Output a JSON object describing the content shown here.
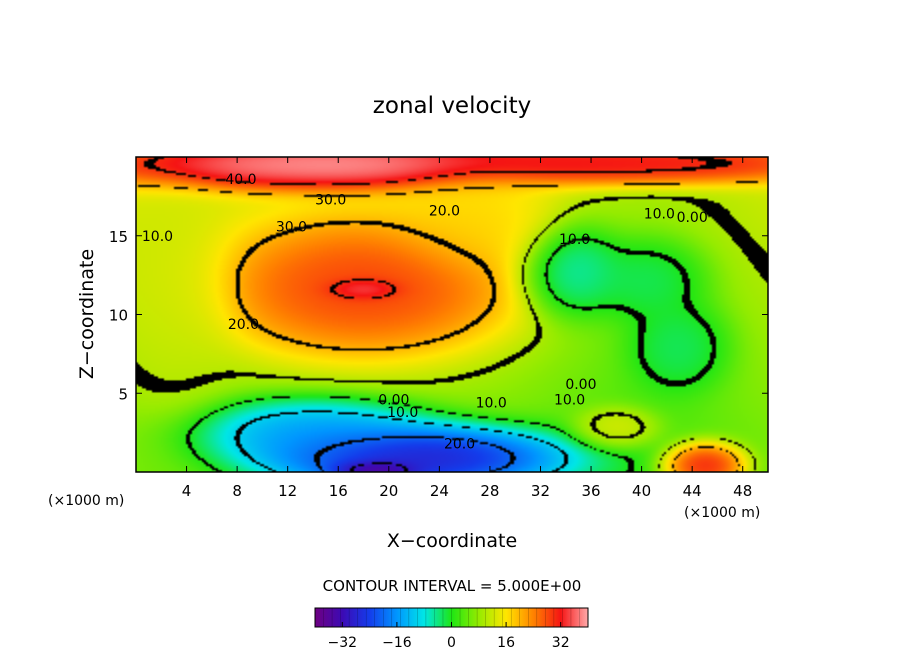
{
  "chart_data": {
    "type": "heatmap",
    "title": "zonal velocity",
    "xlabel": "X−coordinate",
    "ylabel": "Z−coordinate",
    "x_unit_left": "(×1000 m)",
    "x_unit_right": "(×1000 m)",
    "xlim": [
      0,
      50
    ],
    "ylim": [
      0,
      20
    ],
    "x_ticks": [
      "4",
      "8",
      "12",
      "16",
      "20",
      "24",
      "28",
      "32",
      "36",
      "40",
      "44",
      "48"
    ],
    "x_tick_values": [
      4,
      8,
      12,
      16,
      20,
      24,
      28,
      32,
      36,
      40,
      44,
      48
    ],
    "y_ticks": [
      "5",
      "10",
      "15"
    ],
    "y_tick_values": [
      5,
      10,
      15
    ],
    "contour_interval_text": "CONTOUR INTERVAL = 5.000E+00",
    "colorbar": {
      "range": [
        -40,
        40
      ],
      "tick_labels": [
        "−32",
        "−16",
        "0",
        "16",
        "32"
      ],
      "tick_values": [
        -32,
        -16,
        0,
        16,
        32
      ]
    },
    "contour_labels": [
      {
        "text": "40.0",
        "x": 8.3,
        "z": 18.6
      },
      {
        "text": "30.0",
        "x": 15.4,
        "z": 17.3
      },
      {
        "text": "30.0",
        "x": 12.3,
        "z": 15.6
      },
      {
        "text": "20.0",
        "x": 24.4,
        "z": 16.6
      },
      {
        "text": "20.0",
        "x": 8.5,
        "z": 9.4
      },
      {
        "text": "10.0",
        "x": 1.7,
        "z": 15.0
      },
      {
        "text": "10.0",
        "x": 34.7,
        "z": 14.8
      },
      {
        "text": "10.0",
        "x": 41.4,
        "z": 16.4
      },
      {
        "text": "0.00",
        "x": 44.0,
        "z": 16.2
      },
      {
        "text": "0.00",
        "x": 35.2,
        "z": 5.6
      },
      {
        "text": "10.0",
        "x": 34.3,
        "z": 4.6
      },
      {
        "text": "0.00",
        "x": 20.4,
        "z": 4.6
      },
      {
        "text": "10.0",
        "x": 21.1,
        "z": 3.8
      },
      {
        "text": "10.0",
        "x": 28.1,
        "z": 4.4
      },
      {
        "text": "20.0",
        "x": 25.6,
        "z": 1.8
      }
    ],
    "features": [
      {
        "x": 18.0,
        "z": 11.6,
        "value": 41,
        "rx": 2.1,
        "rz": 0.5
      },
      {
        "x": 18.0,
        "z": 11.6,
        "value": 34,
        "rx": 9.0,
        "rz": 3.3
      },
      {
        "x": 15.0,
        "z": 19.5,
        "value": 46,
        "rx": 14.0,
        "rz": 1.2
      },
      {
        "x": 40.0,
        "z": 19.6,
        "value": 38,
        "rx": 12.0,
        "rz": 1.0
      },
      {
        "x": 27.0,
        "z": 16.0,
        "value": 18,
        "rx": 5.0,
        "rz": 2.5
      },
      {
        "x": 3.0,
        "z": 10.5,
        "value": 12,
        "rx": 3.5,
        "rz": 5.0
      },
      {
        "x": 22.0,
        "z": 0.9,
        "value": -38,
        "rx": 9.0,
        "rz": 1.6
      },
      {
        "x": 19.0,
        "z": 0.1,
        "value": -45,
        "rx": 2.5,
        "rz": 0.5
      },
      {
        "x": 14.0,
        "z": 2.6,
        "value": -20,
        "rx": 7.0,
        "rz": 1.6
      },
      {
        "x": 34.5,
        "z": 12.8,
        "value": -10,
        "rx": 3.0,
        "rz": 2.2
      },
      {
        "x": 40.5,
        "z": 12.2,
        "value": -5,
        "rx": 3.5,
        "rz": 2.0
      },
      {
        "x": 43.0,
        "z": 8.0,
        "value": -5,
        "rx": 3.0,
        "rz": 2.2
      },
      {
        "x": 45.0,
        "z": 0.4,
        "value": 38,
        "rx": 2.4,
        "rz": 1.1
      },
      {
        "x": 38.0,
        "z": 2.8,
        "value": 15,
        "rx": 2.5,
        "rz": 1.0
      }
    ]
  }
}
